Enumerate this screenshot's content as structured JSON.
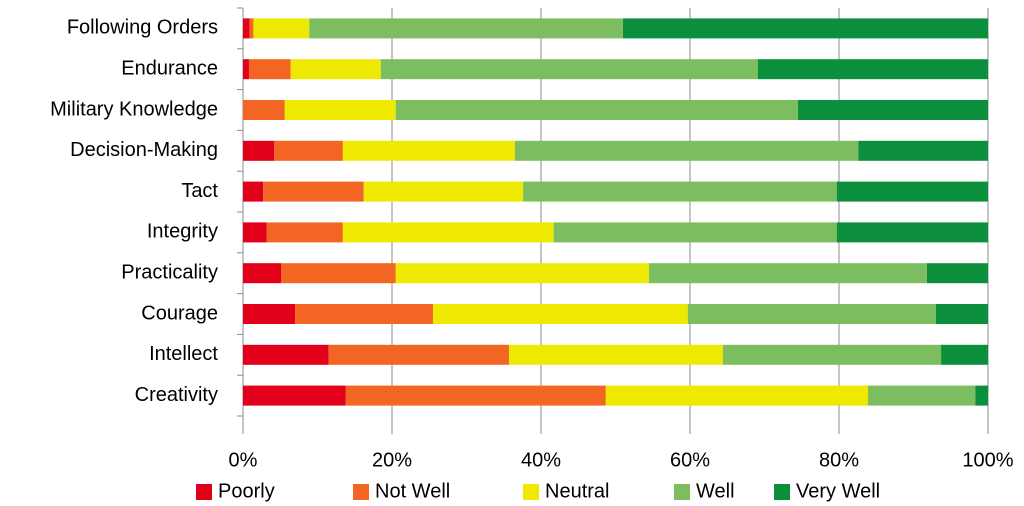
{
  "chart_data": {
    "type": "stacked_barh",
    "categories": [
      "Following Orders",
      "Endurance",
      "Military Knowledge",
      "Decision-Making",
      "Tact",
      "Integrity",
      "Practicality",
      "Courage",
      "Intellect",
      "Creativity"
    ],
    "series": [
      {
        "name": "Poorly",
        "color": "#e2001a",
        "values": [
          0.9,
          0.8,
          0,
          4.2,
          2.7,
          3.2,
          5.1,
          7.0,
          11.5,
          13.8
        ]
      },
      {
        "name": "Not Well",
        "color": "#f26522",
        "values": [
          0.5,
          5.6,
          5.6,
          9.2,
          13.5,
          10.2,
          15.4,
          18.5,
          24.2,
          34.9
        ]
      },
      {
        "name": "Neutral",
        "color": "#efe800",
        "values": [
          7.5,
          12.1,
          14.9,
          23.1,
          21.4,
          28.3,
          34.0,
          34.2,
          28.7,
          35.2
        ]
      },
      {
        "name": "Well",
        "color": "#7cbd5f",
        "values": [
          42.1,
          50.6,
          54.0,
          46.1,
          42.1,
          38.0,
          37.3,
          33.3,
          29.3,
          14.4
        ]
      },
      {
        "name": "Very Well",
        "color": "#0b8f3c",
        "values": [
          49.0,
          30.9,
          25.5,
          17.4,
          20.3,
          20.3,
          8.2,
          7.0,
          6.3,
          1.7
        ]
      }
    ],
    "xlim": [
      0,
      100
    ],
    "xticks": [
      {
        "value": 0,
        "label": "0%"
      },
      {
        "value": 20,
        "label": "20%"
      },
      {
        "value": 40,
        "label": "40%"
      },
      {
        "value": 60,
        "label": "60%"
      },
      {
        "value": 80,
        "label": "80%"
      },
      {
        "value": 100,
        "label": "100%"
      }
    ],
    "grid": true,
    "legend": "bottom"
  }
}
